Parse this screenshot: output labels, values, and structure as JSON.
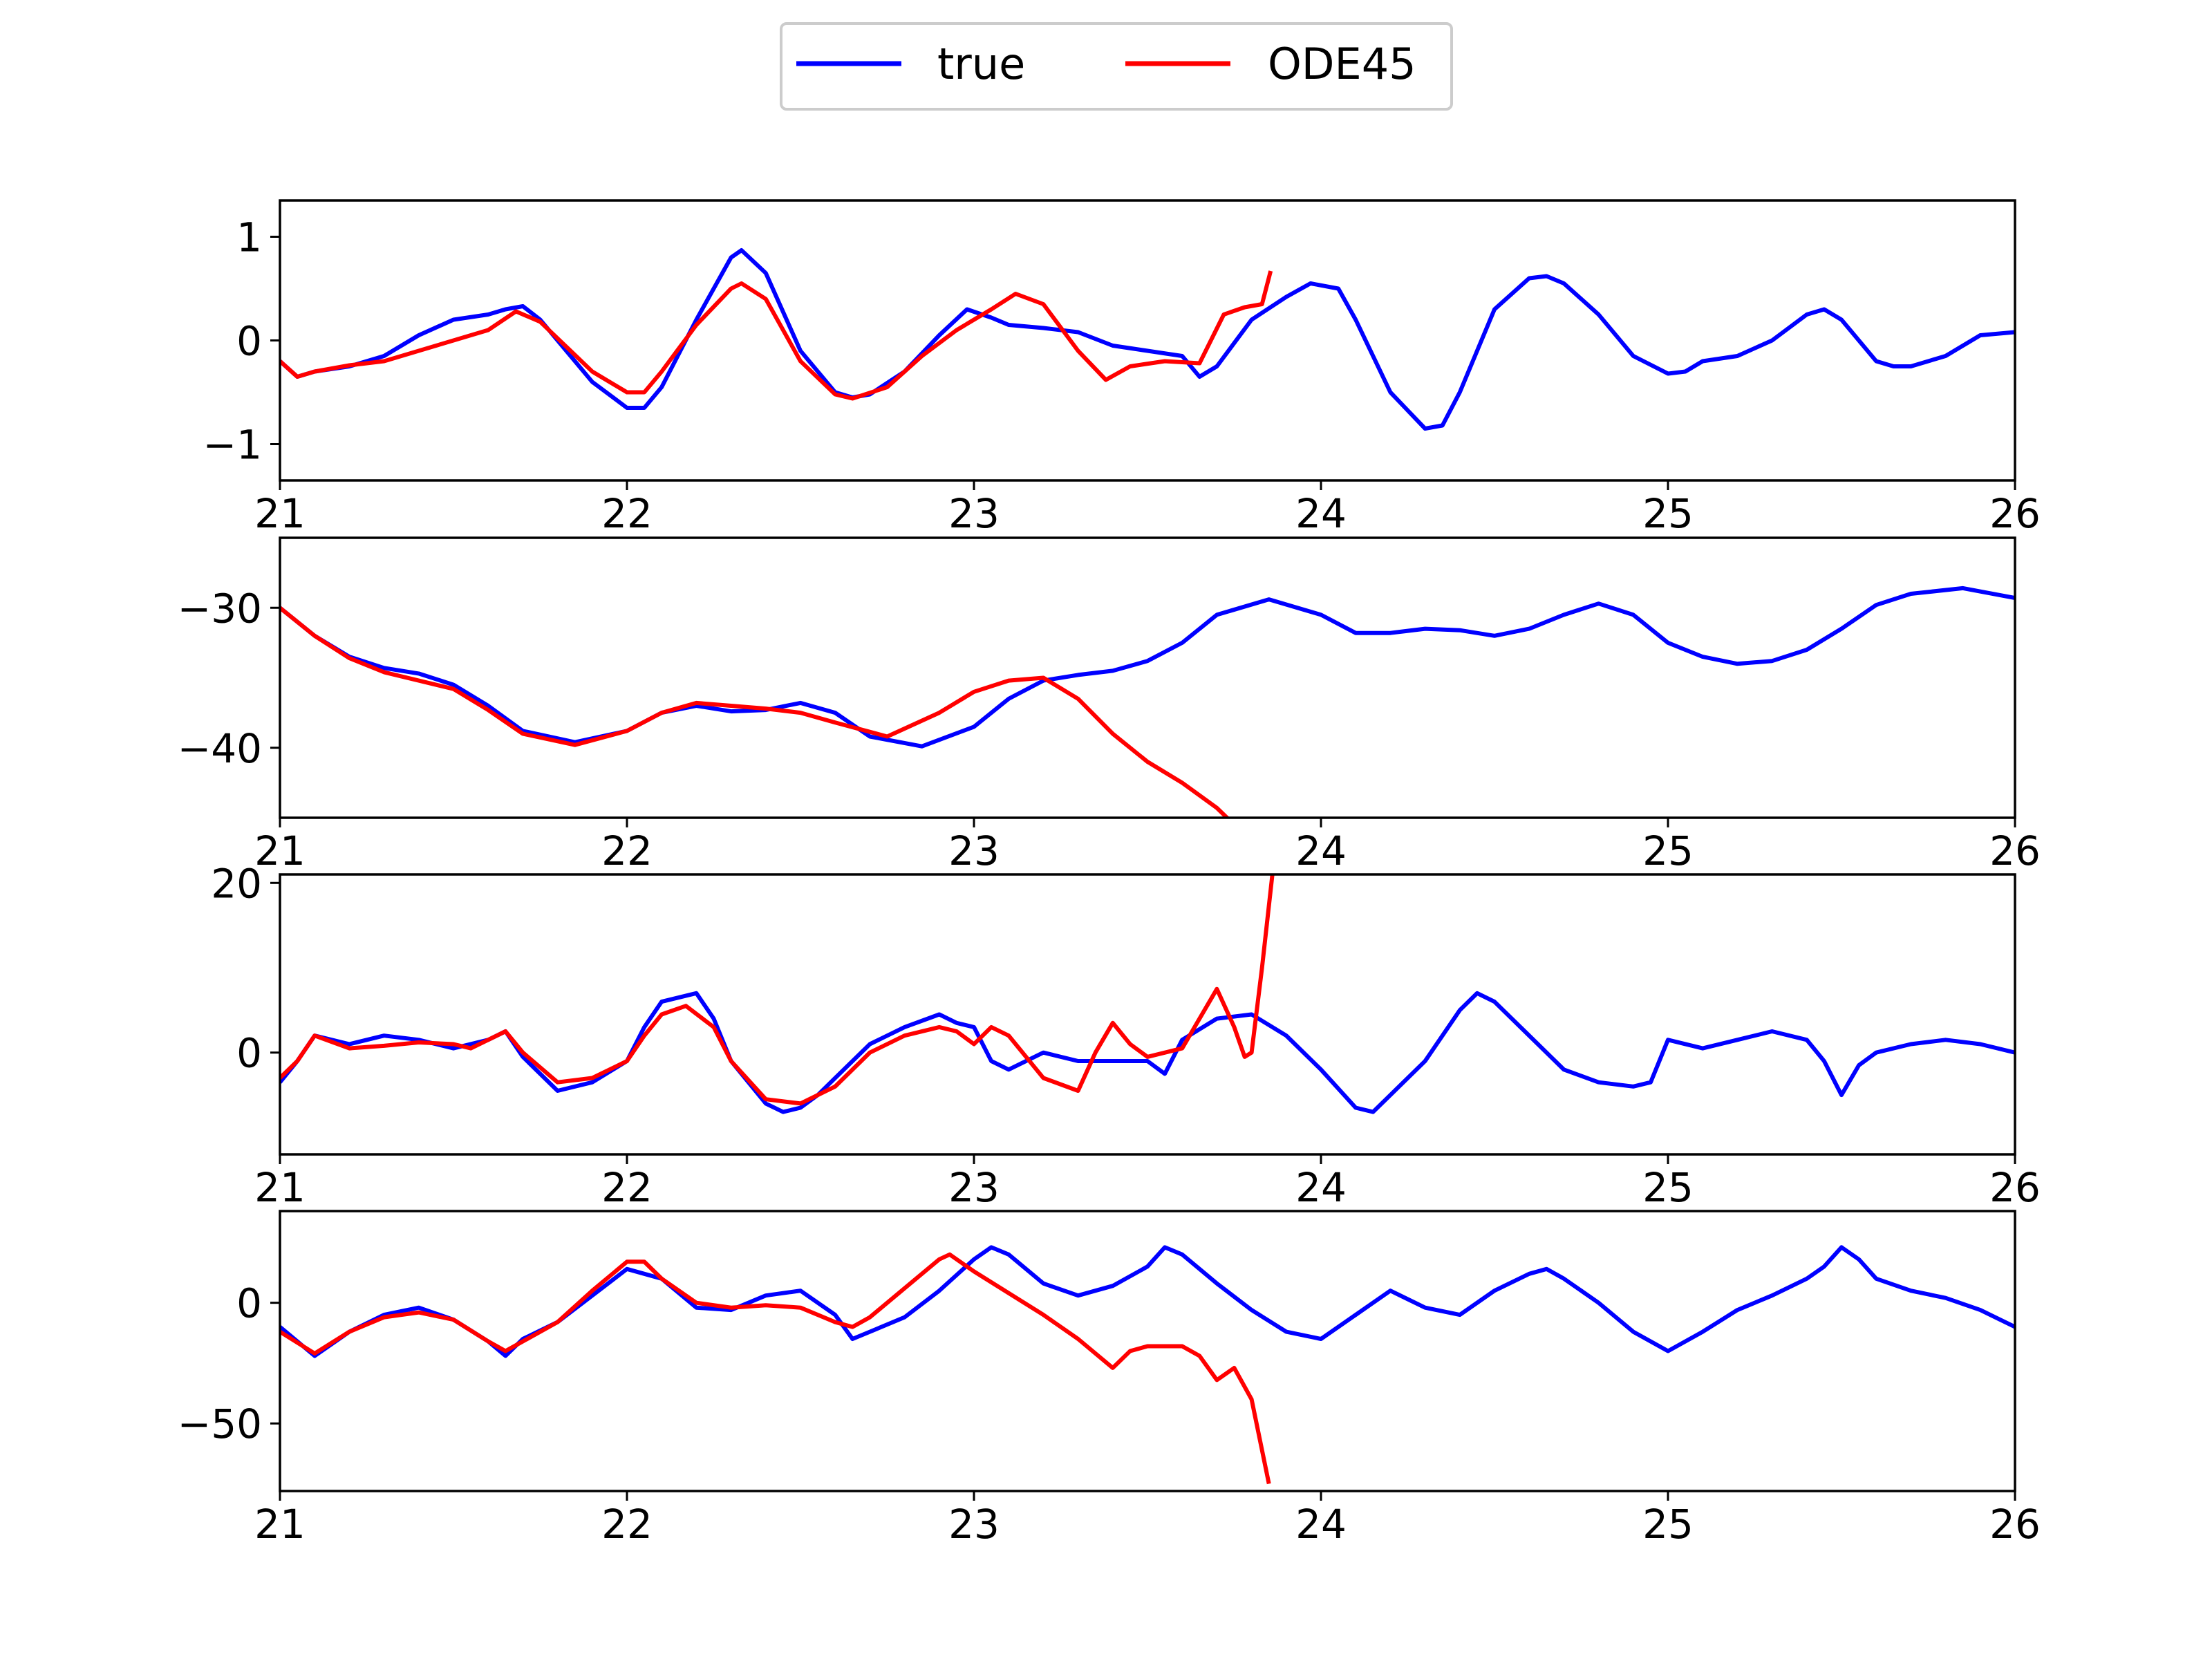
{
  "legend": {
    "placement": "top-center",
    "entries": [
      "true",
      "ODE45"
    ]
  },
  "colors": {
    "true": "#0000ff",
    "ODE45": "#ff0000"
  },
  "chart_data": [
    {
      "type": "line",
      "xlim": [
        21,
        26
      ],
      "ylim": [
        -1.35,
        1.35
      ],
      "xticks": [
        21,
        22,
        23,
        24,
        25,
        26
      ],
      "yticks": [
        {
          "v": 1,
          "label": "1"
        },
        {
          "v": 0,
          "label": "0"
        },
        {
          "v": -1,
          "label": "−1"
        }
      ],
      "series": [
        {
          "name": "true",
          "x": [
            21.0,
            21.05,
            21.1,
            21.2,
            21.3,
            21.4,
            21.5,
            21.6,
            21.65,
            21.7,
            21.75,
            21.8,
            21.9,
            22.0,
            22.05,
            22.1,
            22.2,
            22.3,
            22.33,
            22.4,
            22.5,
            22.6,
            22.65,
            22.7,
            22.8,
            22.9,
            22.98,
            23.05,
            23.1,
            23.2,
            23.3,
            23.4,
            23.5,
            23.6,
            23.65,
            23.7,
            23.8,
            23.9,
            23.97,
            24.05,
            24.1,
            24.2,
            24.3,
            24.35,
            24.4,
            24.5,
            24.6,
            24.65,
            24.7,
            24.8,
            24.9,
            25.0,
            25.05,
            25.1,
            25.2,
            25.3,
            25.4,
            25.45,
            25.5,
            25.6,
            25.65,
            25.7,
            25.8,
            25.9,
            26.0
          ],
          "y": [
            -0.2,
            -0.35,
            -0.3,
            -0.25,
            -0.15,
            0.05,
            0.2,
            0.25,
            0.3,
            0.33,
            0.2,
            0.0,
            -0.4,
            -0.65,
            -0.65,
            -0.45,
            0.2,
            0.8,
            0.87,
            0.65,
            -0.1,
            -0.5,
            -0.55,
            -0.52,
            -0.3,
            0.05,
            0.3,
            0.22,
            0.15,
            0.12,
            0.08,
            -0.05,
            -0.1,
            -0.15,
            -0.35,
            -0.25,
            0.2,
            0.42,
            0.55,
            0.5,
            0.2,
            -0.5,
            -0.85,
            -0.82,
            -0.5,
            0.3,
            0.6,
            0.62,
            0.55,
            0.25,
            -0.15,
            -0.32,
            -0.3,
            -0.2,
            -0.15,
            0.0,
            0.25,
            0.3,
            0.2,
            -0.2,
            -0.25,
            -0.25,
            -0.15,
            0.05,
            0.08
          ]
        },
        {
          "name": "ODE45",
          "x": [
            21.0,
            21.05,
            21.1,
            21.2,
            21.3,
            21.4,
            21.5,
            21.6,
            21.68,
            21.75,
            21.9,
            22.0,
            22.05,
            22.1,
            22.2,
            22.3,
            22.33,
            22.4,
            22.5,
            22.6,
            22.65,
            22.75,
            22.85,
            22.95,
            23.05,
            23.12,
            23.2,
            23.3,
            23.38,
            23.45,
            23.55,
            23.65,
            23.72,
            23.78,
            23.83,
            23.855
          ],
          "y": [
            -0.2,
            -0.35,
            -0.3,
            -0.24,
            -0.2,
            -0.1,
            0.0,
            0.1,
            0.28,
            0.18,
            -0.3,
            -0.5,
            -0.5,
            -0.3,
            0.15,
            0.5,
            0.55,
            0.4,
            -0.2,
            -0.52,
            -0.56,
            -0.45,
            -0.15,
            0.1,
            0.3,
            0.45,
            0.35,
            -0.1,
            -0.38,
            -0.25,
            -0.2,
            -0.22,
            0.25,
            0.32,
            0.35,
            0.67
          ]
        }
      ]
    },
    {
      "type": "line",
      "xlim": [
        21,
        26
      ],
      "ylim": [
        -45,
        -25
      ],
      "xticks": [
        21,
        22,
        23,
        24,
        25,
        26
      ],
      "yticks": [
        {
          "v": -30,
          "label": "−30"
        },
        {
          "v": -40,
          "label": "−40"
        }
      ],
      "series": [
        {
          "name": "true",
          "x": [
            21.0,
            21.1,
            21.2,
            21.3,
            21.4,
            21.5,
            21.6,
            21.7,
            21.85,
            22.0,
            22.1,
            22.2,
            22.3,
            22.4,
            22.5,
            22.6,
            22.7,
            22.85,
            23.0,
            23.1,
            23.2,
            23.3,
            23.4,
            23.5,
            23.6,
            23.7,
            23.85,
            24.0,
            24.1,
            24.2,
            24.3,
            24.4,
            24.5,
            24.6,
            24.7,
            24.8,
            24.9,
            25.0,
            25.1,
            25.2,
            25.3,
            25.4,
            25.5,
            25.6,
            25.7,
            25.85,
            26.0
          ],
          "y": [
            -30.0,
            -32.0,
            -33.5,
            -34.3,
            -34.7,
            -35.5,
            -37.0,
            -38.8,
            -39.6,
            -38.8,
            -37.5,
            -37.0,
            -37.4,
            -37.3,
            -36.8,
            -37.5,
            -39.2,
            -39.9,
            -38.5,
            -36.5,
            -35.2,
            -34.8,
            -34.5,
            -33.8,
            -32.5,
            -30.5,
            -29.4,
            -30.5,
            -31.8,
            -31.8,
            -31.5,
            -31.6,
            -32.0,
            -31.5,
            -30.5,
            -29.7,
            -30.5,
            -32.5,
            -33.5,
            -34.0,
            -33.8,
            -33.0,
            -31.5,
            -29.8,
            -29.0,
            -28.6,
            -29.3
          ]
        },
        {
          "name": "ODE45",
          "x": [
            21.0,
            21.1,
            21.2,
            21.3,
            21.4,
            21.5,
            21.6,
            21.7,
            21.85,
            22.0,
            22.1,
            22.2,
            22.3,
            22.4,
            22.5,
            22.6,
            22.75,
            22.9,
            23.0,
            23.1,
            23.2,
            23.3,
            23.4,
            23.5,
            23.6,
            23.7,
            23.75
          ],
          "y": [
            -30.0,
            -32.0,
            -33.6,
            -34.6,
            -35.2,
            -35.8,
            -37.3,
            -39.0,
            -39.8,
            -38.8,
            -37.5,
            -36.8,
            -37.0,
            -37.2,
            -37.5,
            -38.2,
            -39.2,
            -37.5,
            -36.0,
            -35.2,
            -35.0,
            -36.5,
            -39.0,
            -41.0,
            -42.5,
            -44.3,
            -45.5
          ]
        }
      ]
    },
    {
      "type": "line",
      "xlim": [
        21,
        26
      ],
      "ylim": [
        -12,
        21
      ],
      "xticks": [
        21,
        22,
        23,
        24,
        25,
        26
      ],
      "yticks": [
        {
          "v": 20,
          "label": "20"
        },
        {
          "v": 0,
          "label": "0"
        }
      ],
      "series": [
        {
          "name": "true",
          "x": [
            21.0,
            21.05,
            21.1,
            21.2,
            21.3,
            21.4,
            21.5,
            21.6,
            21.65,
            21.7,
            21.8,
            21.9,
            22.0,
            22.05,
            22.1,
            22.2,
            22.25,
            22.3,
            22.4,
            22.45,
            22.5,
            22.55,
            22.6,
            22.7,
            22.8,
            22.9,
            22.95,
            23.0,
            23.05,
            23.1,
            23.2,
            23.3,
            23.4,
            23.5,
            23.55,
            23.6,
            23.7,
            23.8,
            23.9,
            24.0,
            24.1,
            24.15,
            24.2,
            24.3,
            24.4,
            24.45,
            24.5,
            24.6,
            24.7,
            24.8,
            24.9,
            24.95,
            25.0,
            25.1,
            25.2,
            25.3,
            25.4,
            25.45,
            25.5,
            25.55,
            25.6,
            25.7,
            25.8,
            25.9,
            26.0
          ],
          "y": [
            -3.5,
            -1.0,
            2.0,
            1.0,
            2.0,
            1.5,
            0.5,
            1.5,
            2.5,
            -0.5,
            -4.5,
            -3.5,
            -1.0,
            3.0,
            6.0,
            7.0,
            4.0,
            -1.0,
            -6.0,
            -7.0,
            -6.5,
            -5.0,
            -3.0,
            1.0,
            3.0,
            4.5,
            3.5,
            3.0,
            -1.0,
            -2.0,
            0.0,
            -1.0,
            -1.0,
            -1.0,
            -2.5,
            1.5,
            4.0,
            4.5,
            2.0,
            -2.0,
            -6.5,
            -7.0,
            -5.0,
            -1.0,
            5.0,
            7.0,
            6.0,
            2.0,
            -2.0,
            -3.5,
            -4.0,
            -3.5,
            1.5,
            0.5,
            1.5,
            2.5,
            1.5,
            -1.0,
            -5.0,
            -1.5,
            0.0,
            1.0,
            1.5,
            1.0,
            0.0
          ]
        },
        {
          "name": "ODE45",
          "x": [
            21.0,
            21.05,
            21.1,
            21.2,
            21.3,
            21.4,
            21.5,
            21.55,
            21.6,
            21.65,
            21.7,
            21.8,
            21.9,
            22.0,
            22.05,
            22.1,
            22.17,
            22.25,
            22.3,
            22.4,
            22.5,
            22.6,
            22.7,
            22.8,
            22.9,
            22.95,
            23.0,
            23.05,
            23.1,
            23.2,
            23.3,
            23.35,
            23.4,
            23.45,
            23.5,
            23.6,
            23.65,
            23.7,
            23.75,
            23.78,
            23.8,
            23.83,
            23.86
          ],
          "y": [
            -3.0,
            -1.0,
            2.0,
            0.5,
            0.8,
            1.2,
            1.0,
            0.5,
            1.5,
            2.5,
            0.0,
            -3.5,
            -3.0,
            -1.0,
            2.0,
            4.5,
            5.5,
            3.0,
            -1.0,
            -5.5,
            -6.0,
            -4.0,
            0.0,
            2.0,
            3.0,
            2.5,
            1.0,
            3.0,
            2.0,
            -3.0,
            -4.5,
            0.0,
            3.5,
            1.0,
            -0.5,
            0.5,
            4.0,
            7.5,
            3.0,
            -0.5,
            0.0,
            10.0,
            21.0
          ]
        }
      ]
    },
    {
      "type": "line",
      "xlim": [
        21,
        26
      ],
      "ylim": [
        -78,
        38
      ],
      "xticks": [
        21,
        22,
        23,
        24,
        25,
        26
      ],
      "xtick_labels": [
        "21",
        "22",
        "23",
        "24",
        "25",
        "26"
      ],
      "yticks": [
        {
          "v": 0,
          "label": "0"
        },
        {
          "v": -50,
          "label": "−50"
        }
      ],
      "series": [
        {
          "name": "true",
          "x": [
            21.0,
            21.1,
            21.2,
            21.3,
            21.4,
            21.5,
            21.6,
            21.65,
            21.7,
            21.8,
            21.9,
            22.0,
            22.1,
            22.2,
            22.3,
            22.4,
            22.5,
            22.6,
            22.65,
            22.7,
            22.8,
            22.9,
            23.0,
            23.05,
            23.1,
            23.2,
            23.3,
            23.4,
            23.5,
            23.55,
            23.6,
            23.7,
            23.8,
            23.9,
            24.0,
            24.1,
            24.2,
            24.3,
            24.4,
            24.5,
            24.6,
            24.65,
            24.7,
            24.8,
            24.9,
            25.0,
            25.1,
            25.2,
            25.3,
            25.4,
            25.45,
            25.5,
            25.55,
            25.6,
            25.7,
            25.8,
            25.9,
            26.0
          ],
          "y": [
            -10.0,
            -22.0,
            -12.0,
            -5.0,
            -2.0,
            -7.0,
            -16.0,
            -22.0,
            -15.0,
            -8.0,
            3.0,
            14.0,
            10.0,
            -2.0,
            -3.0,
            3.0,
            5.0,
            -5.0,
            -15.0,
            -12.0,
            -6.0,
            5.0,
            18.0,
            23.0,
            20.0,
            8.0,
            3.0,
            7.0,
            15.0,
            23.0,
            20.0,
            8.0,
            -3.0,
            -12.0,
            -15.0,
            -5.0,
            5.0,
            -2.0,
            -5.0,
            5.0,
            12.0,
            14.0,
            10.0,
            0.0,
            -12.0,
            -20.0,
            -12.0,
            -3.0,
            3.0,
            10.0,
            15.0,
            23.0,
            18.0,
            10.0,
            5.0,
            2.0,
            -3.0,
            -10.0
          ]
        },
        {
          "name": "ODE45",
          "x": [
            21.0,
            21.1,
            21.2,
            21.3,
            21.4,
            21.5,
            21.6,
            21.65,
            21.7,
            21.8,
            21.9,
            22.0,
            22.05,
            22.1,
            22.2,
            22.3,
            22.4,
            22.5,
            22.6,
            22.65,
            22.7,
            22.8,
            22.9,
            22.93,
            23.0,
            23.1,
            23.2,
            23.3,
            23.4,
            23.45,
            23.5,
            23.6,
            23.65,
            23.7,
            23.75,
            23.8,
            23.85
          ],
          "y": [
            -12.0,
            -21.0,
            -12.0,
            -6.0,
            -4.0,
            -7.0,
            -16.0,
            -20.0,
            -16.0,
            -8.0,
            5.0,
            17.0,
            17.0,
            10.0,
            0.0,
            -2.0,
            -1.0,
            -2.0,
            -8.0,
            -10.0,
            -6.0,
            6.0,
            18.0,
            20.0,
            13.0,
            4.0,
            -5.0,
            -15.0,
            -27.0,
            -20.0,
            -18.0,
            -18.0,
            -22.0,
            -32.0,
            -27.0,
            -40.0,
            -75.0
          ]
        }
      ]
    }
  ]
}
